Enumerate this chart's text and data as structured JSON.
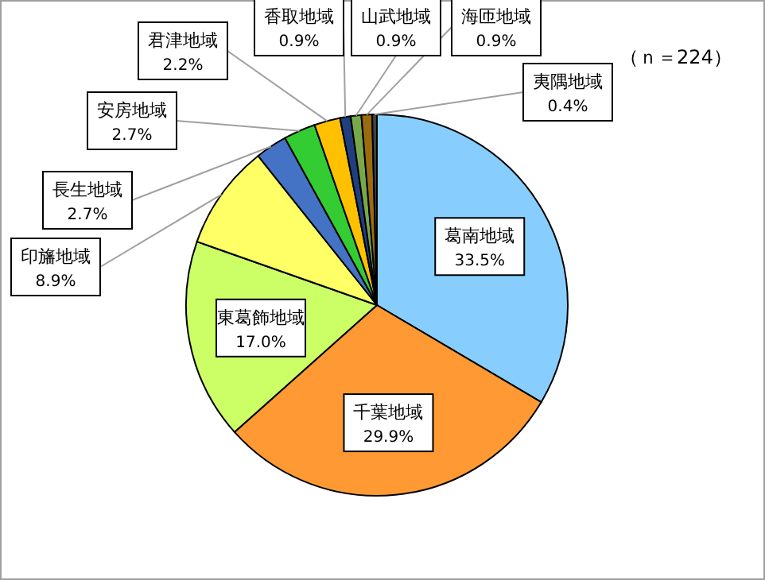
{
  "chart_data": {
    "type": "pie",
    "categories": [
      "葛南地域",
      "千葉地域",
      "東葛飾地域",
      "印旛地域",
      "長生地域",
      "安房地域",
      "君津地域",
      "香取地域",
      "山武地域",
      "海匝地域",
      "夷隅地域"
    ],
    "values": [
      33.5,
      29.9,
      17.0,
      8.9,
      2.7,
      2.7,
      2.2,
      0.9,
      0.9,
      0.9,
      0.4
    ],
    "colors": [
      "#87ceff",
      "#ff9933",
      "#ccff66",
      "#ffff66",
      "#4472c4",
      "#33cc33",
      "#ffc000",
      "#1f3f7f",
      "#77a94a",
      "#9b6b0f",
      "#404040"
    ],
    "value_labels": [
      "33.5%",
      "29.9%",
      "17.0%",
      "8.9%",
      "2.7%",
      "2.7%",
      "2.2%",
      "0.9%",
      "0.9%",
      "0.9%",
      "0.4%"
    ],
    "annotations": [
      "（ｎ＝224）"
    ]
  }
}
